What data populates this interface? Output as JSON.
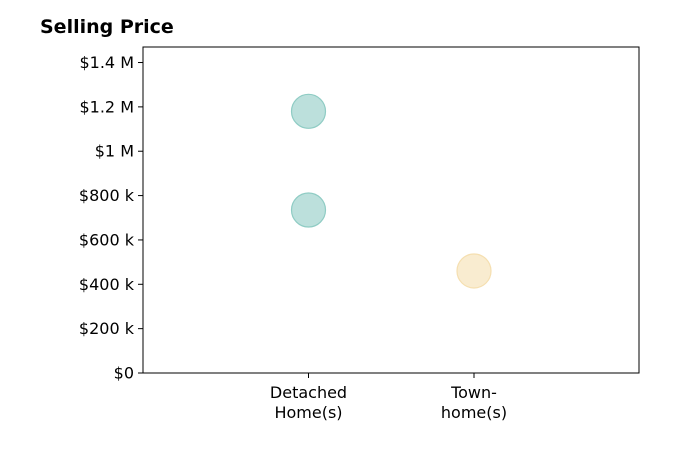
{
  "chart_data": {
    "type": "scatter",
    "title": "Selling Price",
    "xlabel": "",
    "ylabel": "",
    "categories": [
      [
        "Detached",
        "Home(s)"
      ],
      [
        "Town-",
        "home(s)"
      ]
    ],
    "ylim": [
      0,
      1470000
    ],
    "yticks": [
      0,
      200000,
      400000,
      600000,
      800000,
      1000000,
      1200000,
      1400000
    ],
    "ytick_labels": [
      "$0",
      "$200 k",
      "$400 k",
      "$600 k",
      "$800 k",
      "$1 M",
      "$1.2 M",
      "$1.4 M"
    ],
    "grid": false,
    "points": [
      {
        "category": 0,
        "value": 1180000,
        "color": "#8fccc4"
      },
      {
        "category": 0,
        "value": 735000,
        "color": "#8fccc4"
      },
      {
        "category": 1,
        "value": 460000,
        "color": "#f5dfb0"
      }
    ]
  }
}
